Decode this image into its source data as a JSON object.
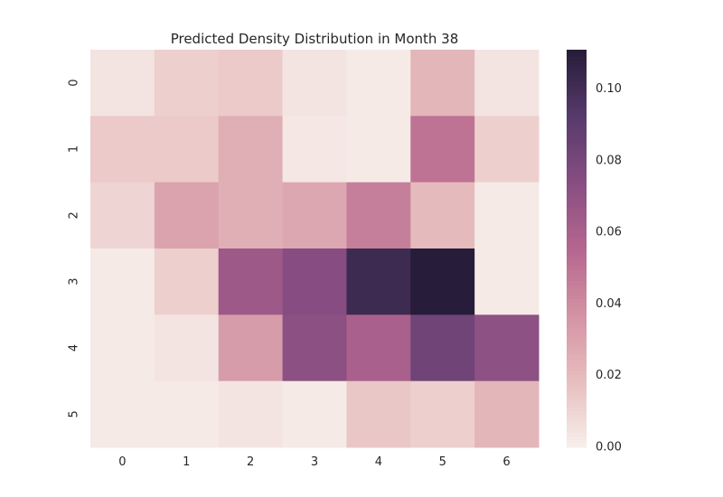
{
  "chart_data": {
    "type": "heatmap",
    "title": "Predicted Density Distribution in Month 38",
    "xlabel": "",
    "ylabel": "",
    "x_categories": [
      "0",
      "1",
      "2",
      "3",
      "4",
      "5",
      "6"
    ],
    "y_categories": [
      "0",
      "1",
      "2",
      "3",
      "4",
      "5"
    ],
    "values": [
      [
        0.004,
        0.012,
        0.014,
        0.004,
        0.002,
        0.022,
        0.004
      ],
      [
        0.014,
        0.014,
        0.025,
        0.003,
        0.002,
        0.05,
        0.012
      ],
      [
        0.01,
        0.03,
        0.025,
        0.028,
        0.045,
        0.02,
        0.002
      ],
      [
        0.002,
        0.012,
        0.065,
        0.074,
        0.102,
        0.111,
        0.002
      ],
      [
        0.002,
        0.004,
        0.033,
        0.072,
        0.06,
        0.083,
        0.071
      ],
      [
        0.002,
        0.002,
        0.004,
        0.002,
        0.015,
        0.012,
        0.022
      ]
    ],
    "vmin": 0.0,
    "vmax": 0.111,
    "colorbar": {
      "ticks": [
        0.0,
        0.02,
        0.04,
        0.06,
        0.08,
        0.1
      ],
      "tick_labels": [
        "0.00",
        "0.02",
        "0.04",
        "0.06",
        "0.08",
        "0.10"
      ]
    },
    "colormap": [
      "#f7efeb",
      "#e7bebe",
      "#d392a4",
      "#b5668f",
      "#874d82",
      "#573a6c",
      "#271c39"
    ],
    "grid": false,
    "legend": "colorbar-right"
  }
}
